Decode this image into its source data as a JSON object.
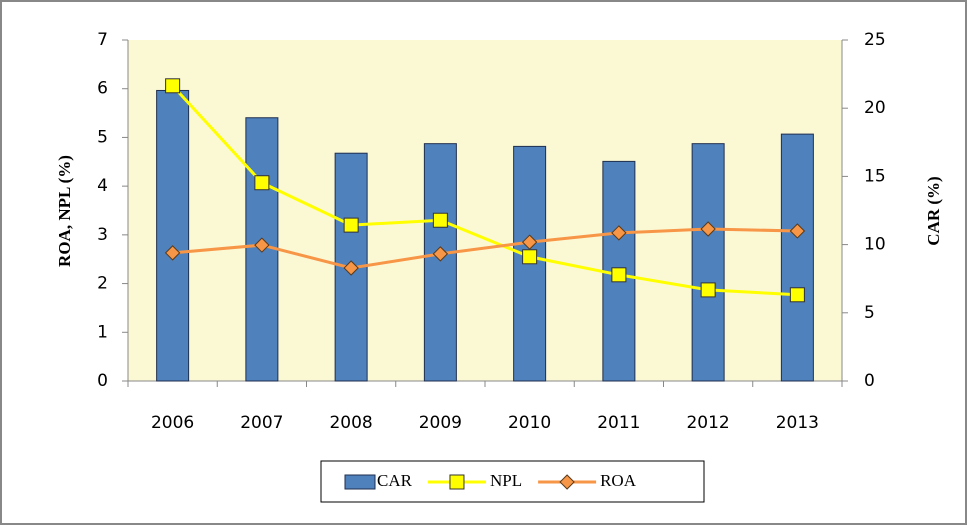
{
  "chart_data": {
    "type": "combo",
    "categories": [
      "2006",
      "2007",
      "2008",
      "2009",
      "2010",
      "2011",
      "2012",
      "2013"
    ],
    "series": [
      {
        "name": "CAR",
        "type": "bar",
        "axis": "y2",
        "color": "#4f81bd",
        "values": [
          21.3,
          19.3,
          16.7,
          17.4,
          17.2,
          16.1,
          17.4,
          18.1
        ]
      },
      {
        "name": "NPL",
        "type": "line",
        "marker": "square",
        "color": "#ffff00",
        "values": [
          6.06,
          4.07,
          3.2,
          3.3,
          2.55,
          2.18,
          1.87,
          1.77
        ]
      },
      {
        "name": "ROA",
        "type": "line",
        "marker": "diamond",
        "color": "#f79646",
        "values": [
          2.63,
          2.79,
          2.32,
          2.61,
          2.85,
          3.04,
          3.12,
          3.08
        ]
      }
    ],
    "ylabel": "ROA, NPL (%)",
    "y2label": "CAR (%)",
    "ylim": [
      0,
      7
    ],
    "yticks": [
      0,
      1,
      2,
      3,
      4,
      5,
      6,
      7
    ],
    "y2lim": [
      0,
      25
    ],
    "y2ticks": [
      0,
      5,
      10,
      15,
      20,
      25
    ],
    "plot_background": "#fbf8d4",
    "legend": "bottom"
  }
}
